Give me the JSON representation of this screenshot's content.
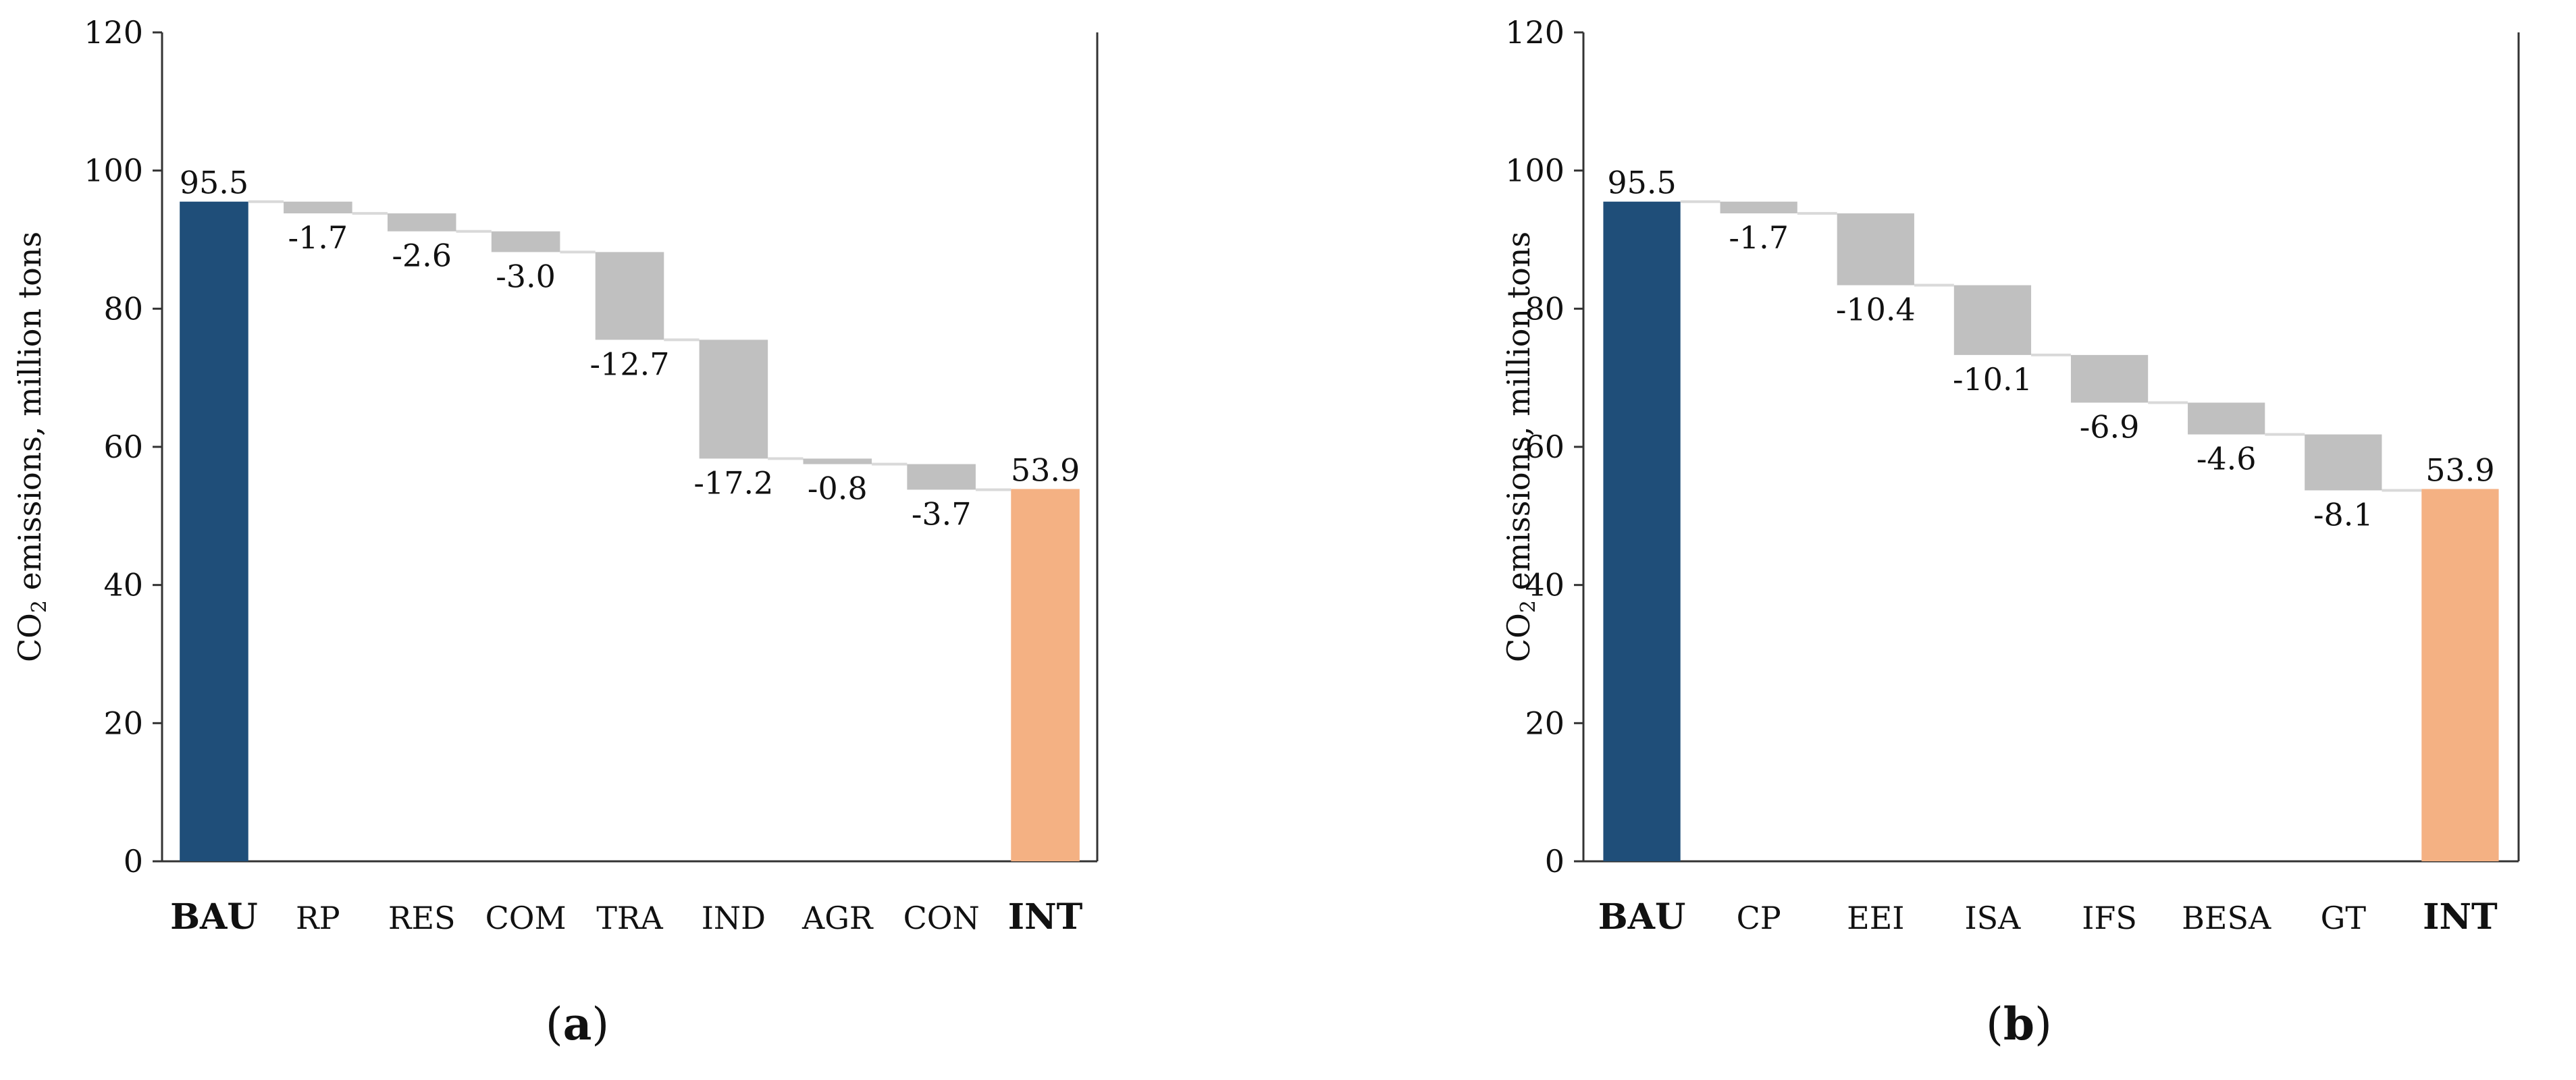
{
  "colors": {
    "start": "#1f4e79",
    "end": "#f4b183",
    "delta": "#c0c0c0",
    "connector": "#d9d9d9",
    "axis": "#333333"
  },
  "chart_data": [
    {
      "type": "bar",
      "subtype": "waterfall",
      "panel_label": "a",
      "ylabel_main": "CO",
      "ylabel_sub": "2",
      "ylabel_rest": " emissions,  million tons",
      "ylim": [
        0,
        120
      ],
      "yticks": [
        0,
        20,
        40,
        60,
        80,
        100,
        120
      ],
      "categories": [
        "BAU",
        "RP",
        "RES",
        "COM",
        "TRA",
        "IND",
        "AGR",
        "CON",
        "INT"
      ],
      "bold_categories": [
        "BAU",
        "INT"
      ],
      "start_value": 95.5,
      "deltas": [
        -1.7,
        -2.6,
        -3.0,
        -12.7,
        -17.2,
        -0.8,
        -3.7
      ],
      "end_value": 53.9,
      "labels": [
        "95.5",
        "-1.7",
        "-2.6",
        "-3.0",
        "-12.7",
        "-17.2",
        "-0.8",
        "-3.7",
        "53.9"
      ]
    },
    {
      "type": "bar",
      "subtype": "waterfall",
      "panel_label": "b",
      "ylabel_main": "CO",
      "ylabel_sub": "2",
      "ylabel_rest": " emissions,  million tons",
      "ylim": [
        0,
        120
      ],
      "yticks": [
        0,
        20,
        40,
        60,
        80,
        100,
        120
      ],
      "categories": [
        "BAU",
        "CP",
        "EEI",
        "ISA",
        "IFS",
        "BESA",
        "GT",
        "INT"
      ],
      "bold_categories": [
        "BAU",
        "INT"
      ],
      "start_value": 95.5,
      "deltas": [
        -1.7,
        -10.4,
        -10.1,
        -6.9,
        -4.6,
        -8.1
      ],
      "end_value": 53.9,
      "labels": [
        "95.5",
        "-1.7",
        "-10.4",
        "-10.1",
        "-6.9",
        "-4.6",
        "-8.1",
        "53.9"
      ]
    }
  ]
}
